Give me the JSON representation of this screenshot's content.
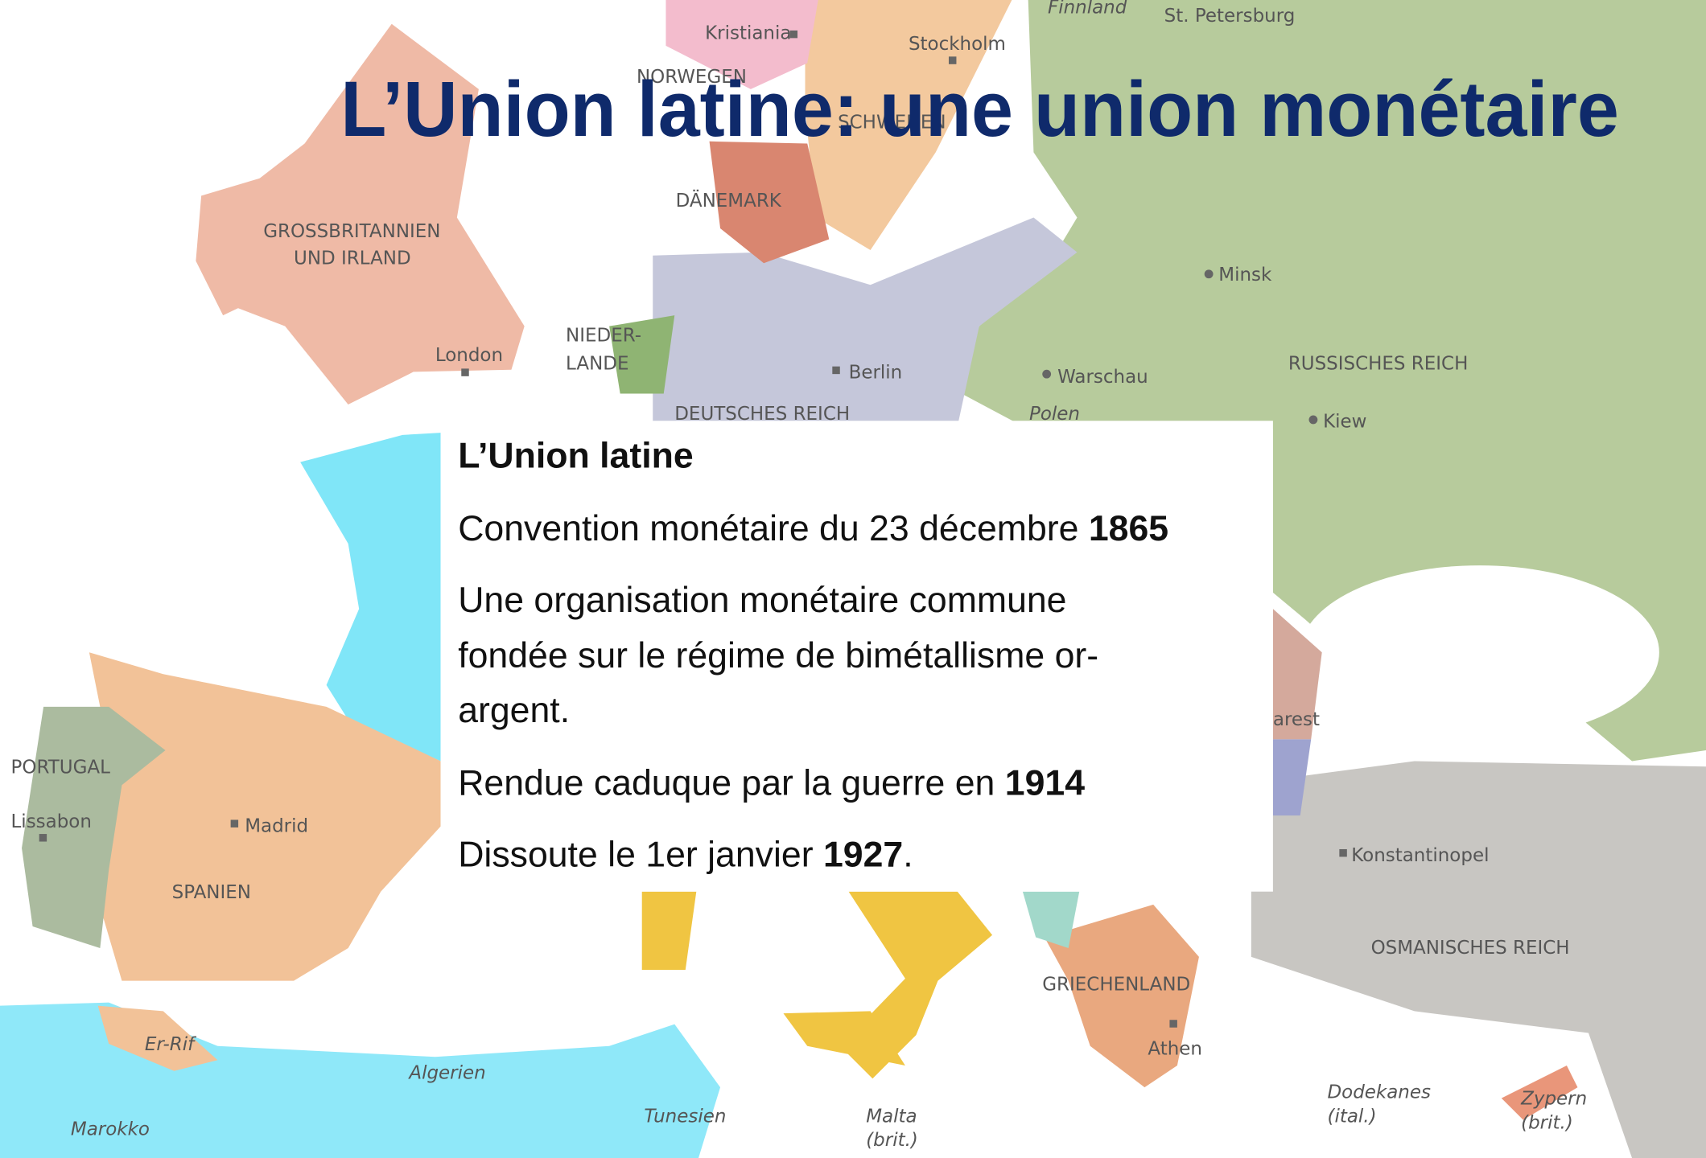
{
  "title": "L’Union latine: une union monétaire",
  "map_labels": [
    "Kristiania",
    "Stockholm",
    "Finnland",
    "St. Petersburg",
    "NORWEGEN",
    "SCHWEDEN",
    "DÄNEMARK",
    "GROSSBRITANNIEN",
    "UND IRLAND",
    "Minsk",
    "NIEDER-",
    "LANDE",
    "London",
    "Berlin",
    "Warschau",
    "RUSSISCHES REICH",
    "DEUTSCHES REICH",
    "Polen",
    "Kiew",
    "arest",
    "PORTUGAL",
    "Lissabon",
    "Madrid",
    "SPANIEN",
    "Konstantinopel",
    "OSMANISCHES REICH",
    "GRIECHENLAND",
    "Athen",
    "Er-Rif",
    "Algerien",
    "Tunesien",
    "Marokko",
    "Malta",
    "(brit.)",
    "Dodekanes",
    "(ital.)",
    "Zypern",
    "(brit.)"
  ],
  "box": {
    "heading": "L’Union latine",
    "lines": [
      [
        {
          "text": "Convention monétaire du 23 décembre "
        },
        {
          "text": "1865",
          "bold": true
        }
      ],
      [
        {
          "text": "Une organisation monétaire commune"
        }
      ],
      [
        {
          "text": "fondée sur le régime de bimétallisme or-"
        }
      ],
      [
        {
          "text": "argent."
        }
      ],
      [
        {
          "text": "Rendue caduque par la guerre en "
        },
        {
          "text": "1914",
          "bold": true
        }
      ],
      [
        {
          "text": "Dissoute le 1er janvier "
        },
        {
          "text": "1927",
          "bold": true
        },
        {
          "text": "."
        }
      ]
    ]
  }
}
